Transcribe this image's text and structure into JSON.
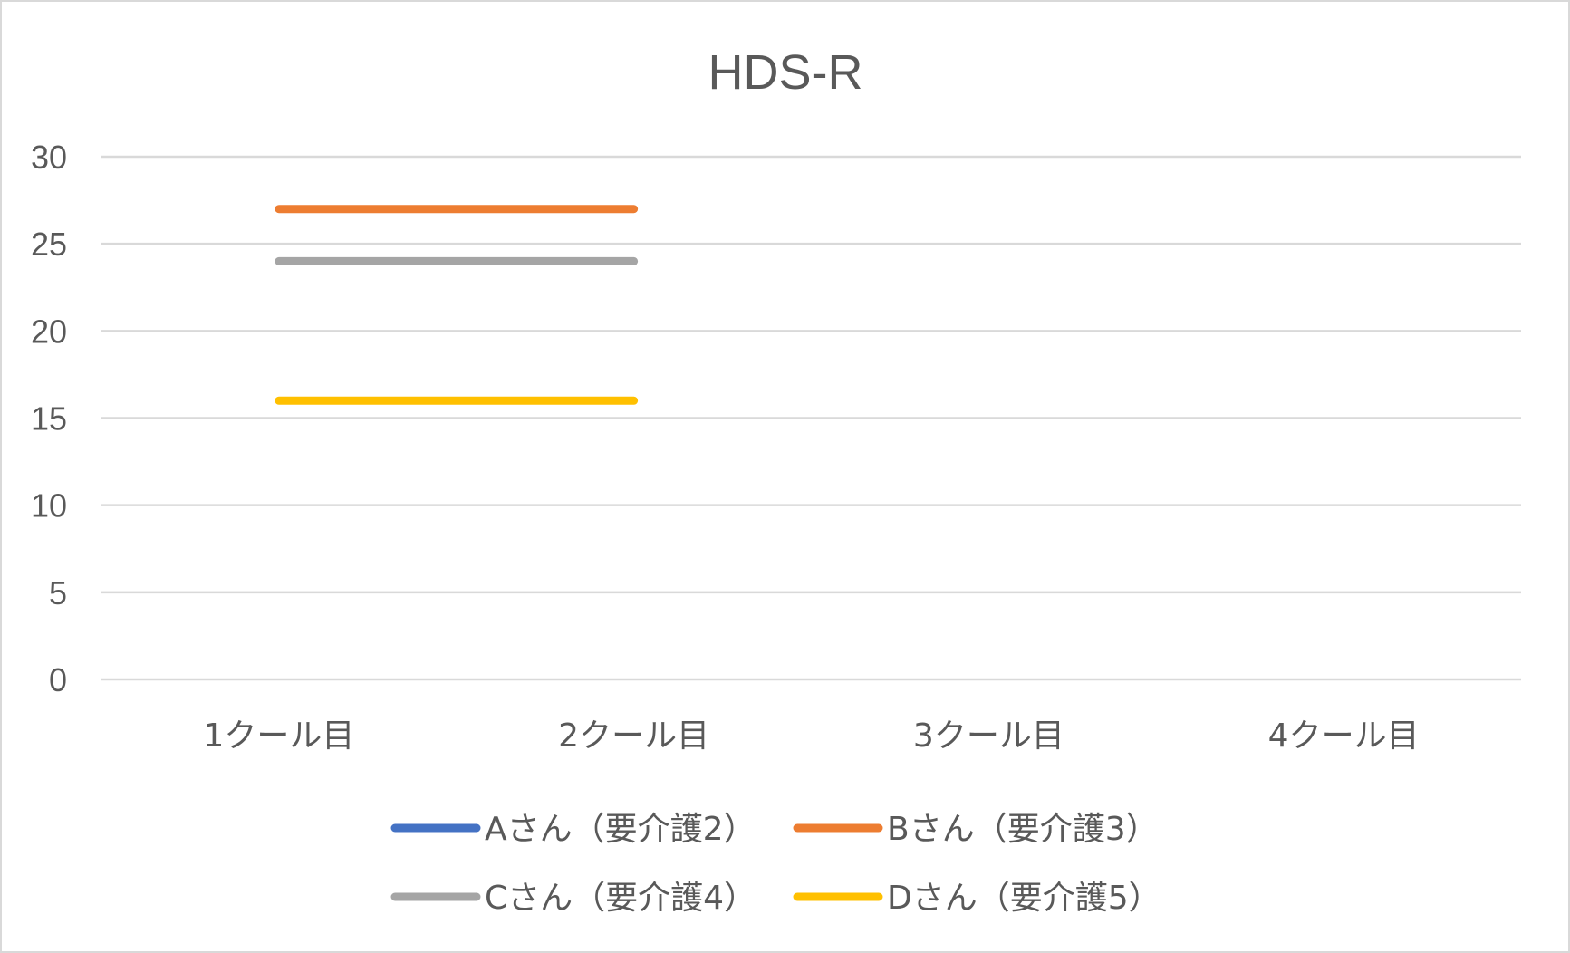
{
  "chart_data": {
    "type": "line",
    "title": "HDS-R",
    "xlabel": "",
    "ylabel": "",
    "categories": [
      "1クール目",
      "2クール目",
      "3クール目",
      "4クール目"
    ],
    "ylim": [
      0,
      30
    ],
    "yticks": [
      0,
      5,
      10,
      15,
      20,
      25,
      30
    ],
    "grid": true,
    "legend_position": "bottom",
    "series": [
      {
        "name": "Aさん（要介護2）",
        "color": "#4472c4",
        "values": [
          null,
          null,
          null,
          null
        ]
      },
      {
        "name": "Bさん（要介護3）",
        "color": "#ed7d31",
        "values": [
          27,
          27,
          null,
          null
        ]
      },
      {
        "name": "Cさん（要介護4）",
        "color": "#a5a5a5",
        "values": [
          24,
          24,
          null,
          null
        ]
      },
      {
        "name": "Dさん（要介護5）",
        "color": "#ffc000",
        "values": [
          16,
          16,
          null,
          null
        ]
      }
    ]
  }
}
